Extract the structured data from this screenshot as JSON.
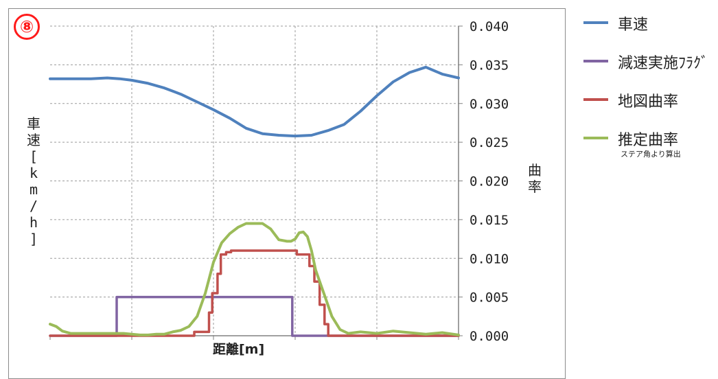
{
  "badge": "⑧",
  "colors": {
    "speed": "#4f81bd",
    "decel_flag": "#8064a2",
    "map_curvature": "#c0504d",
    "est_curvature": "#9bbb59",
    "grid": "#9a9a9a",
    "axis": "#808080"
  },
  "legend": [
    {
      "label": "車速",
      "color_key": "speed"
    },
    {
      "label": "減速実施ﾌﾗｸﾞ",
      "color_key": "decel_flag"
    },
    {
      "label": "地図曲率",
      "color_key": "map_curvature"
    },
    {
      "label": "推定曲率",
      "color_key": "est_curvature",
      "note": "ステア角より算出"
    }
  ],
  "chart_data": {
    "type": "line",
    "xlabel": "距離[m]",
    "ylabel_left": "車速[km/h]",
    "ylabel_right": "曲率",
    "x_range": [
      0,
      100
    ],
    "y_right_range": [
      0,
      0.04
    ],
    "y_right_ticks": [
      "0.000",
      "0.005",
      "0.010",
      "0.015",
      "0.020",
      "0.025",
      "0.030",
      "0.035",
      "0.040"
    ],
    "grid": true,
    "legend_position": "right",
    "series": [
      {
        "name": "車速",
        "color_key": "speed",
        "plotted_in_right_axis_units": true,
        "x": [
          0,
          6,
          10,
          14,
          17,
          20,
          24,
          28,
          32,
          36,
          40,
          44,
          48,
          52,
          56,
          60,
          64,
          68,
          72,
          76,
          80,
          84,
          88,
          92,
          96,
          100
        ],
        "values": [
          0.0332,
          0.0332,
          0.0332,
          0.0333,
          0.0332,
          0.033,
          0.0326,
          0.032,
          0.0312,
          0.0302,
          0.0292,
          0.0281,
          0.0268,
          0.0261,
          0.0259,
          0.0258,
          0.0259,
          0.0265,
          0.0273,
          0.029,
          0.031,
          0.0328,
          0.034,
          0.0347,
          0.0338,
          0.0333
        ]
      },
      {
        "name": "減速実施ﾌﾗｸﾞ",
        "color_key": "decel_flag",
        "step": true,
        "x": [
          0,
          16.3,
          16.3,
          59.3,
          59.3,
          100
        ],
        "values": [
          0,
          0,
          0.005,
          0.005,
          0,
          0
        ]
      },
      {
        "name": "地図曲率",
        "color_key": "map_curvature",
        "step": true,
        "x": [
          0,
          35.3,
          35.3,
          38.9,
          38.9,
          39.7,
          39.7,
          41.0,
          41.0,
          41.8,
          41.8,
          43.1,
          43.1,
          44.3,
          44.3,
          45.9,
          45.9,
          60.4,
          60.4,
          63.5,
          63.5,
          64.7,
          64.7,
          66.0,
          66.0,
          67.2,
          67.2,
          68.1,
          68.1,
          100
        ],
        "values": [
          0,
          0,
          0.0005,
          0.0005,
          0.003,
          0.003,
          0.0055,
          0.0055,
          0.008,
          0.008,
          0.0105,
          0.0105,
          0.0108,
          0.0108,
          0.011,
          0.011,
          0.011,
          0.011,
          0.0105,
          0.0105,
          0.009,
          0.009,
          0.007,
          0.007,
          0.004,
          0.004,
          0.0015,
          0.0015,
          0,
          0
        ]
      },
      {
        "name": "推定曲率",
        "color_key": "est_curvature",
        "x": [
          0,
          1.5,
          3,
          5,
          10,
          15,
          18,
          20,
          22,
          24,
          26,
          28,
          30,
          32,
          34,
          36,
          38,
          40,
          42,
          44,
          46,
          48,
          50,
          52,
          54,
          56,
          58,
          59,
          60,
          61,
          62,
          63,
          64,
          65,
          67,
          69,
          71,
          73,
          76,
          80,
          84,
          88,
          92,
          96,
          100
        ],
        "values": [
          0.0015,
          0.0012,
          0.0006,
          0.0003,
          0.0003,
          0.0003,
          0.0003,
          0.0002,
          0.0001,
          0.0001,
          0.0002,
          0.0002,
          0.0005,
          0.0007,
          0.0012,
          0.0025,
          0.0055,
          0.0095,
          0.012,
          0.0132,
          0.014,
          0.0145,
          0.0145,
          0.0145,
          0.0138,
          0.0124,
          0.0122,
          0.0122,
          0.0125,
          0.0133,
          0.0134,
          0.0128,
          0.011,
          0.0085,
          0.0055,
          0.0025,
          0.0008,
          0.0003,
          0.0005,
          0.0003,
          0.0006,
          0.0004,
          0.0002,
          0.0004,
          0.0001
        ]
      }
    ]
  }
}
